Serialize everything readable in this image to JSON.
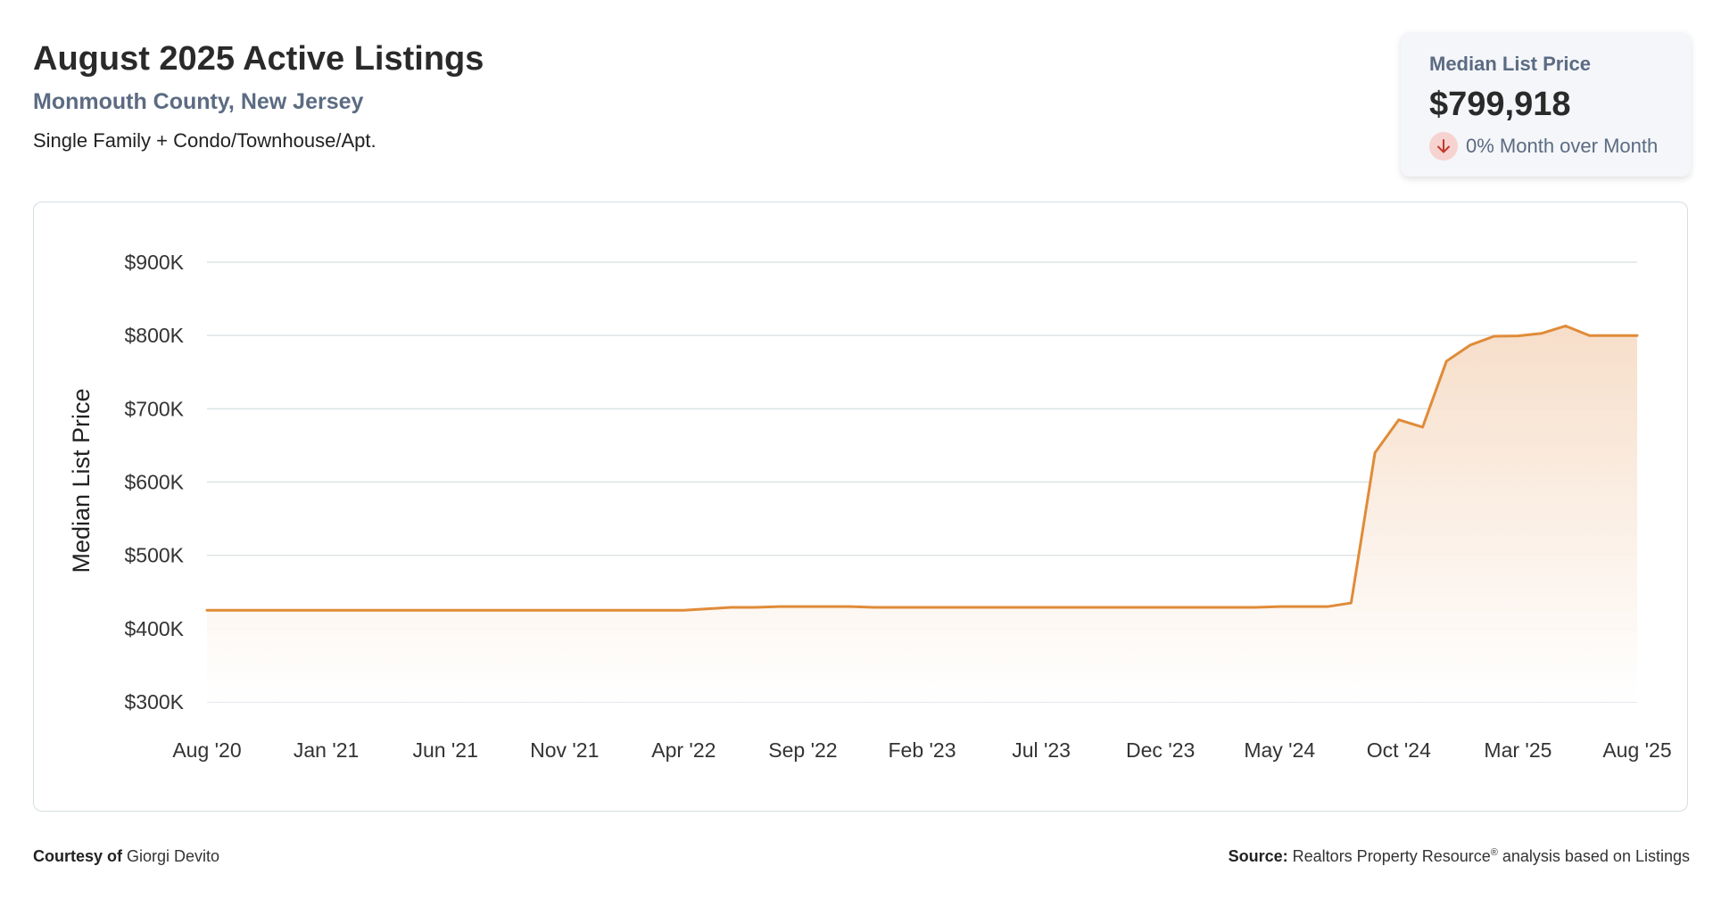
{
  "header": {
    "title": "August 2025 Active Listings",
    "subtitle": "Monmouth County, New Jersey",
    "description": "Single Family + Condo/Townhouse/Apt."
  },
  "kpi": {
    "label": "Median List Price",
    "value": "$799,918",
    "change_text": "0% Month over Month",
    "change_icon": "arrow-down-icon",
    "change_color": "#c0392b"
  },
  "footer": {
    "courtesy_label": "Courtesy of",
    "courtesy_name": "Giorgi Devito",
    "source_label": "Source:",
    "source_text_1": "Realtors Property Resource",
    "source_registered": "®",
    "source_text_2": " analysis based on Listings"
  },
  "colors": {
    "line": "#e08b38",
    "area_top": "#f6dcc6",
    "area_bottom": "#ffffff",
    "grid": "#dde3e6",
    "axis_text": "#333333"
  },
  "chart_data": {
    "type": "area",
    "title": "",
    "xlabel": "",
    "ylabel": "Median List Price",
    "ylim": [
      300000,
      900000
    ],
    "yticks": [
      900000,
      800000,
      700000,
      600000,
      500000,
      400000,
      300000
    ],
    "ytick_labels": [
      "$900K",
      "$800K",
      "$700K",
      "$600K",
      "$500K",
      "$400K",
      "$300K"
    ],
    "xtick_labels": [
      "Aug '20",
      "Jan '21",
      "Jun '21",
      "Nov '21",
      "Apr '22",
      "Sep '22",
      "Feb '23",
      "Jul '23",
      "Dec '23",
      "May '24",
      "Oct '24",
      "Mar '25",
      "Aug '25"
    ],
    "grid": true,
    "legend": "none",
    "x": [
      "2020-08",
      "2020-09",
      "2020-10",
      "2020-11",
      "2020-12",
      "2021-01",
      "2021-02",
      "2021-03",
      "2021-04",
      "2021-05",
      "2021-06",
      "2021-07",
      "2021-08",
      "2021-09",
      "2021-10",
      "2021-11",
      "2021-12",
      "2022-01",
      "2022-02",
      "2022-03",
      "2022-04",
      "2022-05",
      "2022-06",
      "2022-07",
      "2022-08",
      "2022-09",
      "2022-10",
      "2022-11",
      "2022-12",
      "2023-01",
      "2023-02",
      "2023-03",
      "2023-04",
      "2023-05",
      "2023-06",
      "2023-07",
      "2023-08",
      "2023-09",
      "2023-10",
      "2023-11",
      "2023-12",
      "2024-01",
      "2024-02",
      "2024-03",
      "2024-04",
      "2024-05",
      "2024-06",
      "2024-07",
      "2024-08",
      "2024-09",
      "2024-10",
      "2024-11",
      "2024-12",
      "2025-01",
      "2025-02",
      "2025-03",
      "2025-04",
      "2025-05",
      "2025-06",
      "2025-07",
      "2025-08"
    ],
    "series": [
      {
        "values": [
          425000,
          425000,
          425000,
          425000,
          425000,
          425000,
          425000,
          425000,
          425000,
          425000,
          425000,
          425000,
          425000,
          425000,
          425000,
          425000,
          425000,
          425000,
          425000,
          425000,
          425000,
          427000,
          429000,
          429000,
          430000,
          430000,
          430000,
          430000,
          429000,
          429000,
          429000,
          429000,
          429000,
          429000,
          429000,
          429000,
          429000,
          429000,
          429000,
          429000,
          429000,
          429000,
          429000,
          429000,
          429000,
          430000,
          430000,
          430000,
          435000,
          640000,
          685000,
          675000,
          765000,
          787000,
          799000,
          799500,
          803000,
          813000,
          799900,
          799900,
          799918
        ]
      }
    ]
  }
}
